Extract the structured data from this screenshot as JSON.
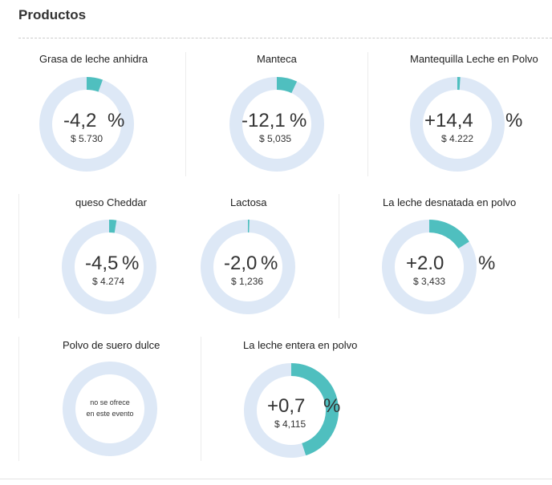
{
  "section": {
    "title": "Productos"
  },
  "colors": {
    "track": "#dde8f6",
    "fill": "#4fbfbf"
  },
  "products": [
    {
      "name": "Grasa de leche anhidra",
      "value": "-4,2",
      "symbol": "%",
      "price": "$ 5.730",
      "share": 0.055
    },
    {
      "name": "Manteca",
      "value": "-12,1",
      "symbol": "%",
      "price": "$ 5,035",
      "share": 0.07
    },
    {
      "name": "Mantequilla Leche en Polvo",
      "value": "+14,4",
      "symbol": "%",
      "price": "$ 4.222",
      "share": 0.01
    },
    {
      "name": "queso Cheddar",
      "value": "-4,5",
      "symbol": "%",
      "price": "$ 4.274",
      "share": 0.025
    },
    {
      "name": "Lactosa",
      "value": "-2,0",
      "symbol": "%",
      "price": "$ 1,236",
      "share": 0.005
    },
    {
      "name": "La leche desnatada en polvo",
      "value": "+2.0",
      "symbol": "%",
      "price": "$ 3,433",
      "share": 0.16
    },
    {
      "name": "Polvo de suero dulce",
      "na_line1": "no se ofrece",
      "na_line2": "en este evento",
      "share": 0
    },
    {
      "name": "La leche entera en polvo",
      "value": "+0,7",
      "symbol": "%",
      "price": "$ 4,115",
      "share": 0.45
    }
  ]
}
